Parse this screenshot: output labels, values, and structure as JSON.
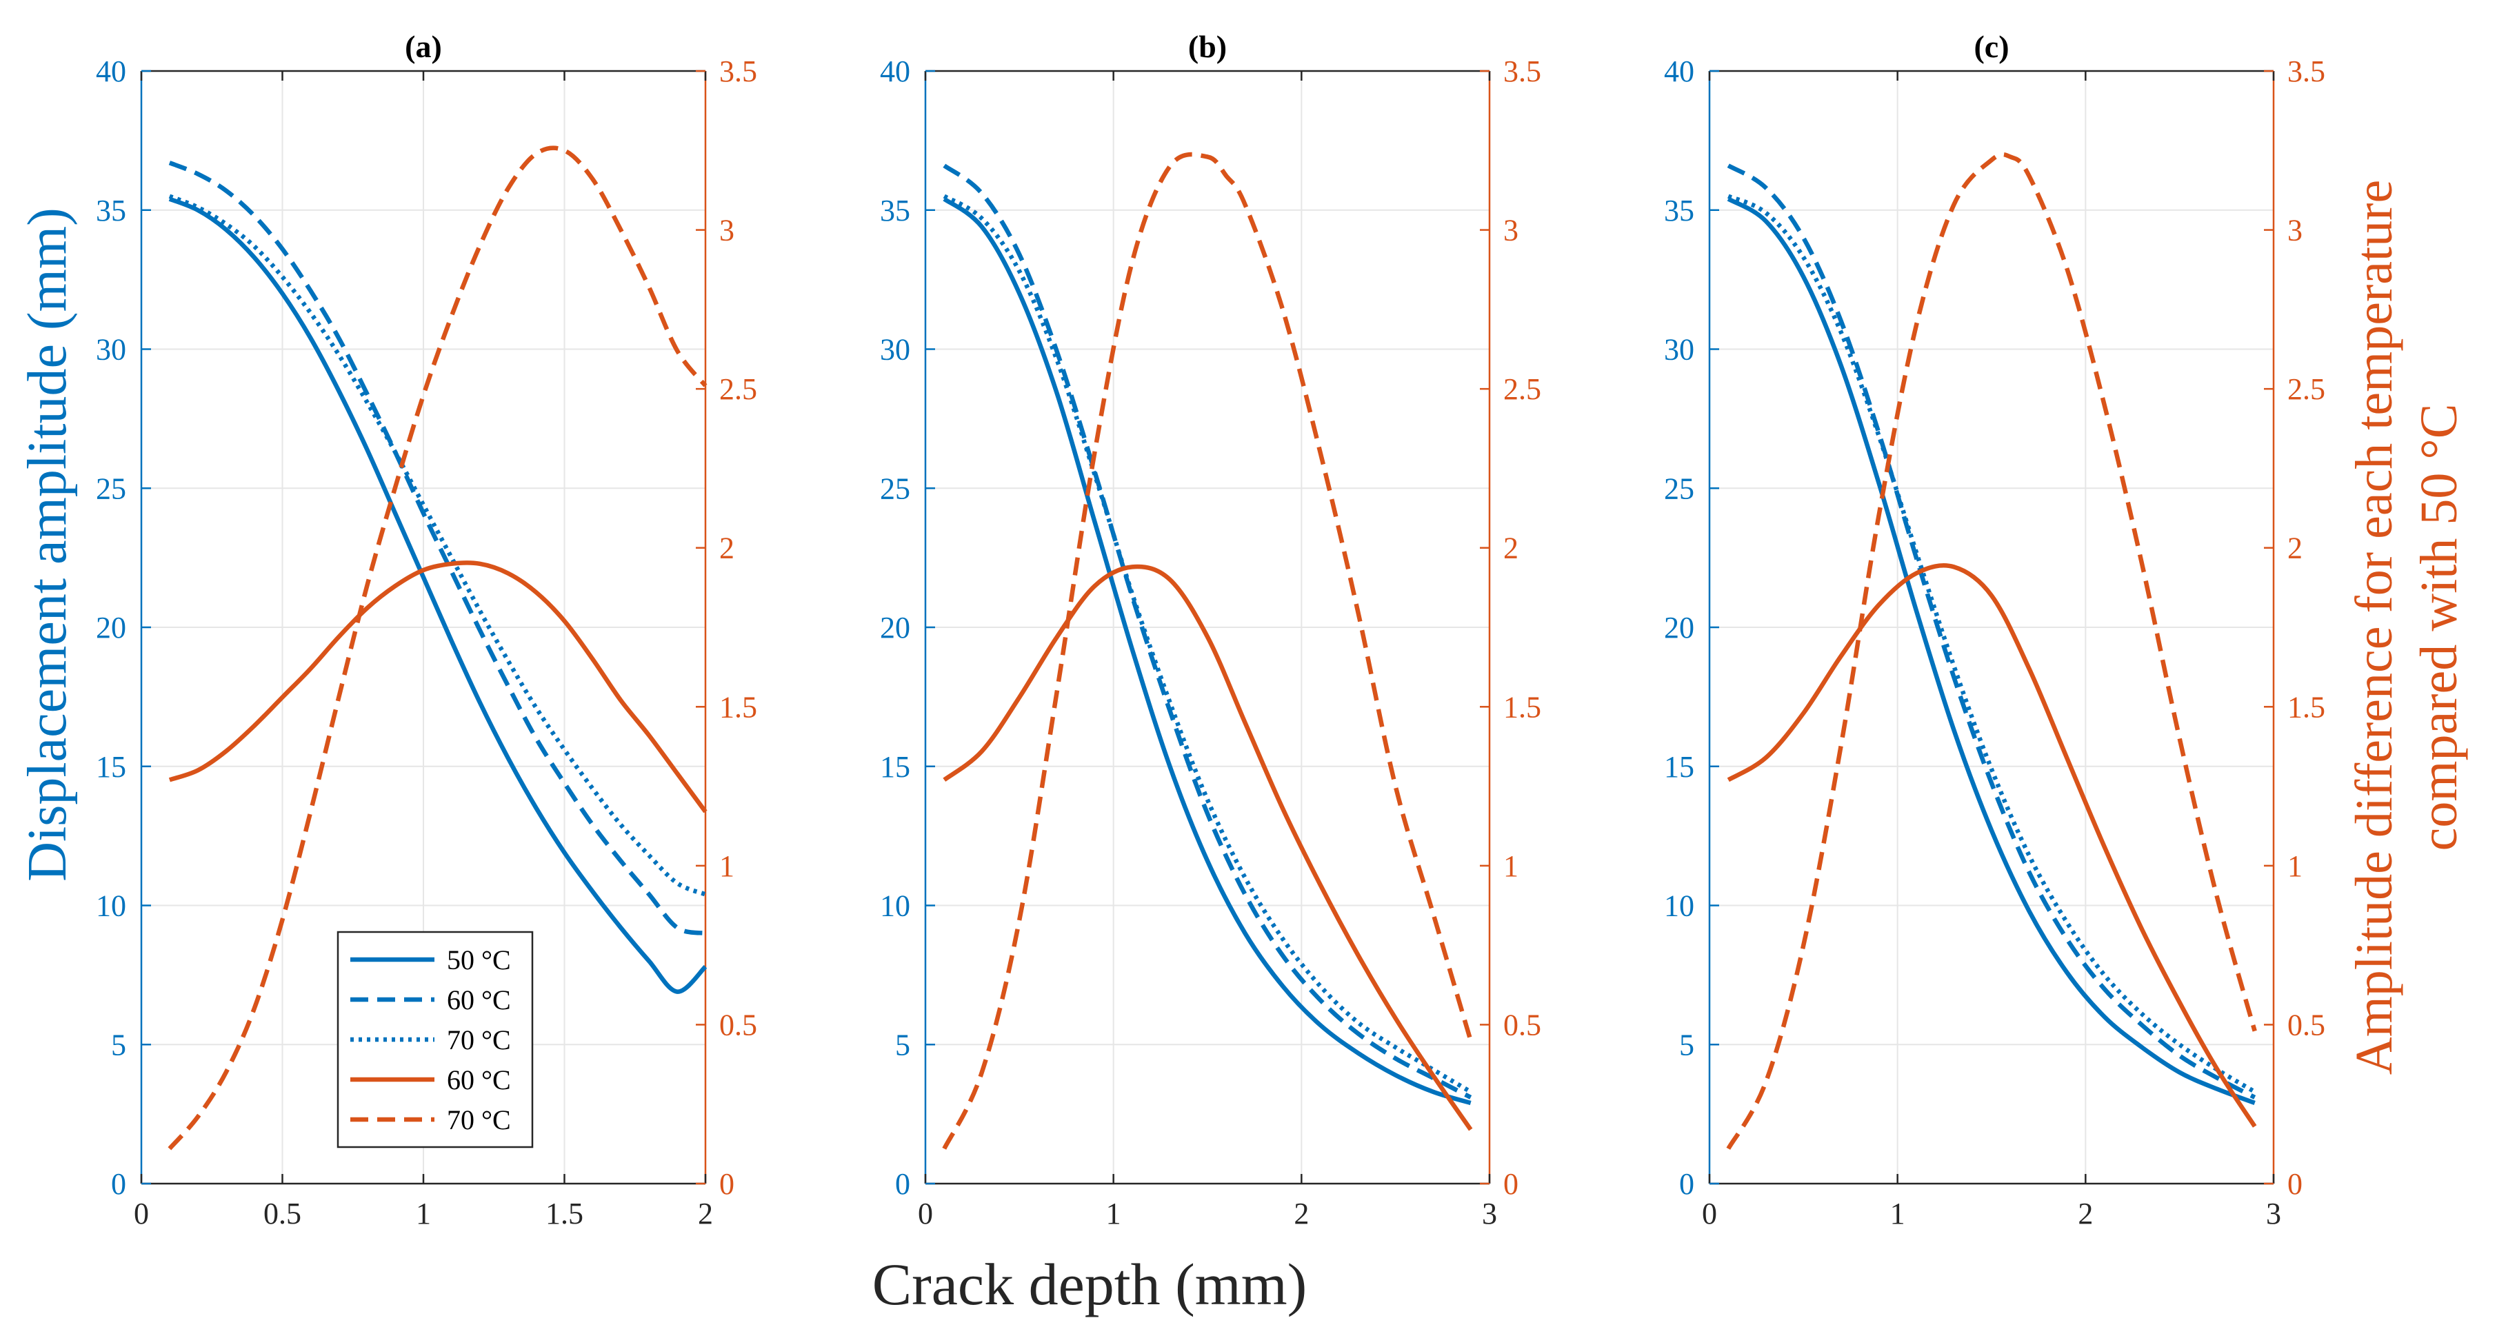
{
  "figure": {
    "xlabel": "Crack depth (mm)",
    "ylabel_left": "Displacement amplitude (mm)",
    "ylabel_right_line1": "Amplitude difference for each temperature",
    "ylabel_right_line2": "compared with 50 °C"
  },
  "colors": {
    "blue": "#0072BD",
    "orange": "#D95319",
    "grid": "#e6e6e6",
    "axis": "#262626"
  },
  "legend": {
    "panel": 0,
    "entries": [
      {
        "label": "50 °C",
        "color": "#0072BD",
        "style": "solid"
      },
      {
        "label": "60 °C",
        "color": "#0072BD",
        "style": "dashed"
      },
      {
        "label": "70 °C",
        "color": "#0072BD",
        "style": "dotted"
      },
      {
        "label": "60 °C",
        "color": "#D95319",
        "style": "solid"
      },
      {
        "label": "70 °C",
        "color": "#D95319",
        "style": "dashed"
      }
    ]
  },
  "chart_data": [
    {
      "type": "line",
      "title": "(a)",
      "xlabel": "Crack depth (mm)",
      "ylabel": "Displacement amplitude (mm)",
      "y2label": "Amplitude difference for each temperature compared with 50 °C",
      "xlim": [
        0,
        2
      ],
      "xticks": [
        0,
        0.5,
        1,
        1.5,
        2
      ],
      "xtick_labels": [
        "0",
        "0.5",
        "1",
        "1.5",
        "2"
      ],
      "ylim": [
        0,
        40
      ],
      "yticks": [
        0,
        5,
        10,
        15,
        20,
        25,
        30,
        35,
        40
      ],
      "ytick_labels": [
        "0",
        "5",
        "10",
        "15",
        "20",
        "25",
        "30",
        "35",
        "40"
      ],
      "y2lim": [
        0,
        3.5
      ],
      "y2ticks": [
        0,
        0.5,
        1,
        1.5,
        2,
        2.5,
        3,
        3.5
      ],
      "y2tick_labels": [
        "0",
        "0.5",
        "1",
        "1.5",
        "2",
        "2.5",
        "3",
        "3.5"
      ],
      "grid": true,
      "series": [
        {
          "name": "50 °C",
          "axis": "left",
          "color": "#0072BD",
          "style": "solid",
          "x": [
            0.1,
            0.2,
            0.3,
            0.4,
            0.5,
            0.6,
            0.7,
            0.8,
            0.9,
            1.0,
            1.1,
            1.2,
            1.3,
            1.4,
            1.5,
            1.6,
            1.7,
            1.8,
            1.9,
            2.0
          ],
          "y": [
            35.4,
            35.0,
            34.3,
            33.3,
            32.0,
            30.4,
            28.5,
            26.4,
            24.1,
            21.8,
            19.5,
            17.3,
            15.3,
            13.5,
            11.9,
            10.5,
            9.2,
            8.0,
            6.9,
            7.8
          ]
        },
        {
          "name": "60 °C",
          "axis": "left",
          "color": "#0072BD",
          "style": "dashed",
          "x": [
            0.1,
            0.2,
            0.3,
            0.4,
            0.5,
            0.6,
            0.7,
            0.8,
            0.9,
            1.0,
            1.1,
            1.2,
            1.3,
            1.4,
            1.5,
            1.6,
            1.7,
            1.8,
            1.9,
            2.0
          ],
          "y": [
            36.7,
            36.3,
            35.7,
            34.8,
            33.6,
            32.1,
            30.4,
            28.4,
            26.3,
            24.1,
            22.0,
            19.9,
            17.9,
            16.0,
            14.4,
            12.9,
            11.6,
            10.4,
            9.2,
            9.0
          ]
        },
        {
          "name": "70 °C",
          "axis": "left",
          "color": "#0072BD",
          "style": "dotted",
          "x": [
            0.1,
            0.2,
            0.3,
            0.4,
            0.5,
            0.6,
            0.7,
            0.8,
            0.9,
            1.0,
            1.1,
            1.2,
            1.3,
            1.4,
            1.5,
            1.6,
            1.7,
            1.8,
            1.9,
            2.0
          ],
          "y": [
            35.5,
            35.1,
            34.5,
            33.7,
            32.6,
            31.3,
            29.8,
            28.1,
            26.3,
            24.4,
            22.5,
            20.6,
            18.8,
            17.1,
            15.6,
            14.2,
            12.9,
            11.8,
            10.8,
            10.4
          ]
        },
        {
          "name": "60 °C",
          "axis": "right",
          "color": "#D95319",
          "style": "solid",
          "x": [
            0.1,
            0.2,
            0.3,
            0.4,
            0.5,
            0.6,
            0.7,
            0.8,
            0.9,
            1.0,
            1.1,
            1.2,
            1.3,
            1.4,
            1.5,
            1.6,
            1.7,
            1.8,
            1.9,
            2.0
          ],
          "y": [
            1.27,
            1.3,
            1.36,
            1.44,
            1.53,
            1.62,
            1.72,
            1.81,
            1.88,
            1.93,
            1.95,
            1.95,
            1.92,
            1.86,
            1.77,
            1.65,
            1.52,
            1.41,
            1.29,
            1.17
          ]
        },
        {
          "name": "70 °C",
          "axis": "right",
          "color": "#D95319",
          "style": "dashed",
          "x": [
            0.1,
            0.2,
            0.3,
            0.4,
            0.5,
            0.6,
            0.7,
            0.8,
            0.9,
            1.0,
            1.1,
            1.2,
            1.3,
            1.4,
            1.5,
            1.6,
            1.7,
            1.8,
            1.9,
            2.0
          ],
          "y": [
            0.11,
            0.21,
            0.35,
            0.55,
            0.83,
            1.17,
            1.53,
            1.88,
            2.19,
            2.48,
            2.73,
            2.95,
            3.13,
            3.24,
            3.25,
            3.16,
            3.0,
            2.82,
            2.62,
            2.51
          ]
        }
      ]
    },
    {
      "type": "line",
      "title": "(b)",
      "xlabel": "Crack depth (mm)",
      "ylabel": "Displacement amplitude (mm)",
      "y2label": "Amplitude difference for each temperature compared with 50 °C",
      "xlim": [
        0,
        3
      ],
      "xticks": [
        0,
        1,
        2,
        3
      ],
      "xtick_labels": [
        "0",
        "1",
        "2",
        "3"
      ],
      "ylim": [
        0,
        40
      ],
      "yticks": [
        0,
        5,
        10,
        15,
        20,
        25,
        30,
        35,
        40
      ],
      "ytick_labels": [
        "0",
        "5",
        "10",
        "15",
        "20",
        "25",
        "30",
        "35",
        "40"
      ],
      "y2lim": [
        0,
        3.5
      ],
      "y2ticks": [
        0,
        0.5,
        1,
        1.5,
        2,
        2.5,
        3,
        3.5
      ],
      "y2tick_labels": [
        "0",
        "0.5",
        "1",
        "1.5",
        "2",
        "2.5",
        "3",
        "3.5"
      ],
      "grid": true,
      "series": [
        {
          "name": "50 °C",
          "axis": "left",
          "color": "#0072BD",
          "style": "solid",
          "x": [
            0.1,
            0.3,
            0.5,
            0.7,
            0.9,
            1.1,
            1.3,
            1.5,
            1.7,
            1.9,
            2.1,
            2.3,
            2.5,
            2.7,
            2.9
          ],
          "y": [
            35.4,
            34.4,
            32.0,
            28.4,
            23.8,
            19.2,
            15.0,
            11.6,
            9.0,
            7.1,
            5.7,
            4.7,
            3.9,
            3.3,
            2.9
          ]
        },
        {
          "name": "60 °C",
          "axis": "left",
          "color": "#0072BD",
          "style": "dashed",
          "x": [
            0.1,
            0.3,
            0.5,
            0.7,
            0.9,
            1.1,
            1.3,
            1.5,
            1.7,
            1.9,
            2.1,
            2.3,
            2.5,
            2.7,
            2.9
          ],
          "y": [
            36.6,
            35.6,
            33.4,
            29.9,
            25.6,
            21.1,
            17.0,
            13.3,
            10.4,
            8.2,
            6.6,
            5.4,
            4.5,
            3.8,
            3.1
          ]
        },
        {
          "name": "70 °C",
          "axis": "left",
          "color": "#0072BD",
          "style": "dotted",
          "x": [
            0.1,
            0.3,
            0.5,
            0.7,
            0.9,
            1.1,
            1.3,
            1.5,
            1.7,
            1.9,
            2.1,
            2.3,
            2.5,
            2.7,
            2.9
          ],
          "y": [
            35.5,
            34.7,
            32.8,
            29.6,
            25.5,
            21.2,
            17.3,
            13.8,
            11.0,
            8.8,
            7.1,
            5.8,
            4.9,
            4.1,
            3.3
          ]
        },
        {
          "name": "60 °C",
          "axis": "right",
          "color": "#D95319",
          "style": "solid",
          "x": [
            0.1,
            0.3,
            0.5,
            0.7,
            0.9,
            1.1,
            1.3,
            1.5,
            1.7,
            1.9,
            2.1,
            2.3,
            2.5,
            2.7,
            2.9
          ],
          "y": [
            1.27,
            1.36,
            1.53,
            1.72,
            1.88,
            1.94,
            1.9,
            1.72,
            1.45,
            1.18,
            0.94,
            0.72,
            0.52,
            0.34,
            0.17
          ]
        },
        {
          "name": "70 °C",
          "axis": "right",
          "color": "#D95319",
          "style": "dashed",
          "x": [
            0.1,
            0.3,
            0.5,
            0.7,
            0.9,
            1.1,
            1.3,
            1.5,
            1.6,
            1.7,
            1.9,
            2.1,
            2.3,
            2.5,
            2.7,
            2.9
          ],
          "y": [
            0.11,
            0.35,
            0.83,
            1.55,
            2.3,
            2.9,
            3.2,
            3.23,
            3.17,
            3.08,
            2.75,
            2.3,
            1.8,
            1.25,
            0.85,
            0.45
          ]
        }
      ]
    },
    {
      "type": "line",
      "title": "(c)",
      "xlabel": "Crack depth (mm)",
      "ylabel": "Displacement amplitude (mm)",
      "y2label": "Amplitude difference for each temperature compared with 50 °C",
      "xlim": [
        0,
        3
      ],
      "xticks": [
        0,
        1,
        2,
        3
      ],
      "xtick_labels": [
        "0",
        "1",
        "2",
        "3"
      ],
      "ylim": [
        0,
        40
      ],
      "yticks": [
        0,
        5,
        10,
        15,
        20,
        25,
        30,
        35,
        40
      ],
      "ytick_labels": [
        "0",
        "5",
        "10",
        "15",
        "20",
        "25",
        "30",
        "35",
        "40"
      ],
      "y2lim": [
        0,
        3.5
      ],
      "y2ticks": [
        0,
        0.5,
        1,
        1.5,
        2,
        2.5,
        3,
        3.5
      ],
      "y2tick_labels": [
        "0",
        "0.5",
        "1",
        "1.5",
        "2",
        "2.5",
        "3",
        "3.5"
      ],
      "grid": true,
      "series": [
        {
          "name": "50 °C",
          "axis": "left",
          "color": "#0072BD",
          "style": "solid",
          "x": [
            0.1,
            0.3,
            0.5,
            0.7,
            0.9,
            1.1,
            1.3,
            1.5,
            1.7,
            1.9,
            2.1,
            2.3,
            2.5,
            2.7,
            2.9
          ],
          "y": [
            35.4,
            34.6,
            32.6,
            29.4,
            25.2,
            20.6,
            16.3,
            12.7,
            9.8,
            7.6,
            6.0,
            4.9,
            4.0,
            3.4,
            2.9
          ]
        },
        {
          "name": "60 °C",
          "axis": "left",
          "color": "#0072BD",
          "style": "dashed",
          "x": [
            0.1,
            0.3,
            0.5,
            0.7,
            0.9,
            1.1,
            1.3,
            1.5,
            1.7,
            1.9,
            2.1,
            2.3,
            2.5,
            2.7,
            2.9
          ],
          "y": [
            36.6,
            35.8,
            34.0,
            31.0,
            27.0,
            22.5,
            18.2,
            14.4,
            11.2,
            8.8,
            7.0,
            5.7,
            4.6,
            3.8,
            3.1
          ]
        },
        {
          "name": "70 °C",
          "axis": "left",
          "color": "#0072BD",
          "style": "dotted",
          "x": [
            0.1,
            0.3,
            0.5,
            0.7,
            0.9,
            1.1,
            1.3,
            1.5,
            1.7,
            1.9,
            2.1,
            2.3,
            2.5,
            2.7,
            2.9
          ],
          "y": [
            35.5,
            34.9,
            33.3,
            30.6,
            26.9,
            22.7,
            18.6,
            14.9,
            11.8,
            9.4,
            7.5,
            6.1,
            5.0,
            4.1,
            3.3
          ]
        },
        {
          "name": "60 °C",
          "axis": "right",
          "color": "#D95319",
          "style": "solid",
          "x": [
            0.1,
            0.3,
            0.5,
            0.7,
            0.9,
            1.1,
            1.3,
            1.5,
            1.7,
            1.9,
            2.1,
            2.3,
            2.5,
            2.7,
            2.9
          ],
          "y": [
            1.27,
            1.34,
            1.48,
            1.66,
            1.82,
            1.92,
            1.94,
            1.85,
            1.62,
            1.34,
            1.06,
            0.8,
            0.57,
            0.36,
            0.18
          ]
        },
        {
          "name": "70 °C",
          "axis": "right",
          "color": "#D95319",
          "style": "dashed",
          "x": [
            0.1,
            0.3,
            0.5,
            0.7,
            0.9,
            1.1,
            1.3,
            1.5,
            1.6,
            1.7,
            1.9,
            2.1,
            2.3,
            2.5,
            2.7,
            2.9
          ],
          "y": [
            0.11,
            0.32,
            0.75,
            1.38,
            2.1,
            2.7,
            3.08,
            3.22,
            3.23,
            3.17,
            2.88,
            2.45,
            1.95,
            1.4,
            0.9,
            0.48
          ]
        }
      ]
    }
  ]
}
